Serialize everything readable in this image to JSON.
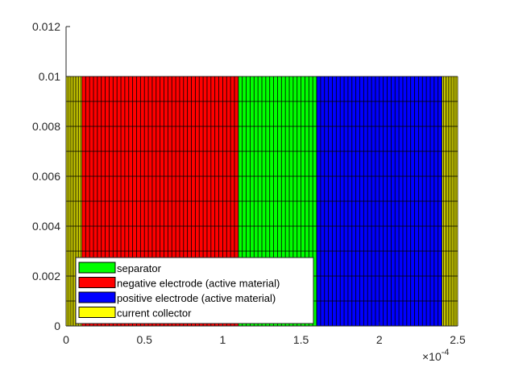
{
  "chart_data": {
    "type": "area",
    "title": "",
    "xlabel": "",
    "ylabel": "",
    "xlim": [
      0,
      0.00025
    ],
    "ylim": [
      0,
      0.012
    ],
    "x_ticks": [
      0,
      5e-05,
      0.0001,
      0.00015,
      0.0002,
      0.00025
    ],
    "x_tick_labels": [
      "0",
      "0.5",
      "1",
      "1.5",
      "2",
      "2.5"
    ],
    "x_exponent_base": "×10",
    "x_exponent_power": "-4",
    "y_ticks": [
      0,
      0.002,
      0.004,
      0.006,
      0.008,
      0.01,
      0.012
    ],
    "y_tick_labels": [
      "0",
      "0.002",
      "0.004",
      "0.006",
      "0.008",
      "0.01",
      "0.012"
    ],
    "grid": false,
    "legend_position": "bottom-left",
    "mesh": {
      "y_range": [
        0,
        0.01
      ],
      "y_cells": 10,
      "edge_color": "#000000"
    },
    "regions": [
      {
        "name": "current collector",
        "x_start": 0.0,
        "x_end": 1e-05,
        "cells": 10,
        "color": "#ffff00"
      },
      {
        "name": "negative electrode (active material)",
        "x_start": 1e-05,
        "x_end": 0.00011,
        "cells": 40,
        "color": "#ff0000"
      },
      {
        "name": "separator",
        "x_start": 0.00011,
        "x_end": 0.00016,
        "cells": 20,
        "color": "#00ff00"
      },
      {
        "name": "positive electrode (active material)",
        "x_start": 0.00016,
        "x_end": 0.00024,
        "cells": 32,
        "color": "#0000ff"
      },
      {
        "name": "current collector",
        "x_start": 0.00024,
        "x_end": 0.00025,
        "cells": 10,
        "color": "#ffff00"
      }
    ],
    "legend": [
      {
        "label": "separator",
        "color": "#00ff00"
      },
      {
        "label": "negative electrode (active material)",
        "color": "#ff0000"
      },
      {
        "label": "positive electrode (active material)",
        "color": "#0000ff"
      },
      {
        "label": "current collector",
        "color": "#ffff00"
      }
    ]
  }
}
